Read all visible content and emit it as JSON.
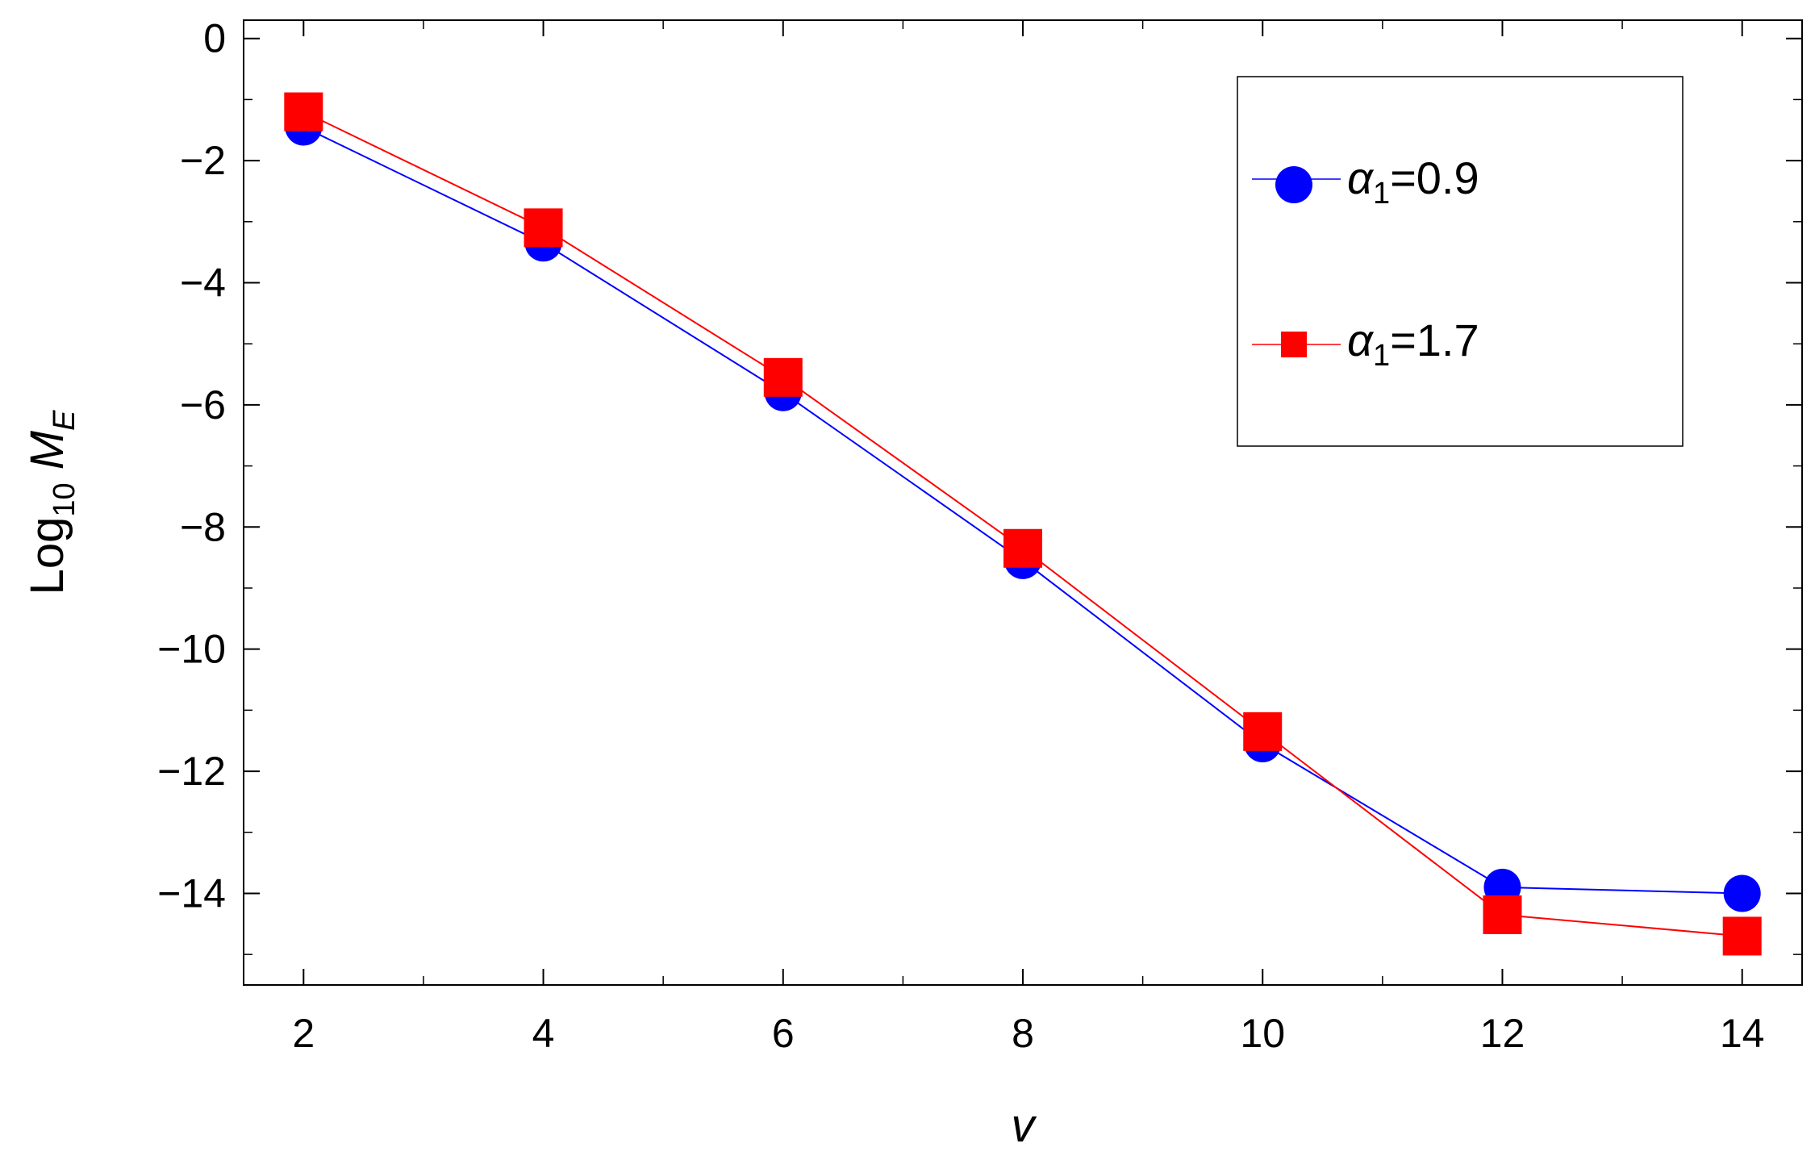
{
  "chart_data": {
    "type": "line",
    "xlabel": "v",
    "ylabel": {
      "base": "Log",
      "base_sub": "10",
      "symbol": "M",
      "symbol_sub": "E"
    },
    "xlim": [
      1.5,
      14.5
    ],
    "ylim": [
      -15.5,
      0.3
    ],
    "xticks": [
      2,
      4,
      6,
      8,
      10,
      12,
      14
    ],
    "xtick_labels": [
      "2",
      "4",
      "6",
      "8",
      "10",
      "12",
      "14"
    ],
    "yticks": [
      0,
      -2,
      -4,
      -6,
      -8,
      -10,
      -12,
      -14
    ],
    "ytick_labels": [
      "0",
      "−2",
      "−4",
      "−6",
      "−8",
      "−10",
      "−12",
      "−14"
    ],
    "x": [
      2,
      4,
      6,
      8,
      10,
      12,
      14
    ],
    "series": [
      {
        "name": "α1=0.9",
        "legend": {
          "symbol": "α",
          "sub": "1",
          "rest": "=0.9"
        },
        "color": "#0000ff",
        "marker": "circle",
        "values": [
          -1.45,
          -3.35,
          -5.8,
          -8.55,
          -11.55,
          -13.9,
          -14.0
        ]
      },
      {
        "name": "α1=1.7",
        "legend": {
          "symbol": "α",
          "sub": "1",
          "rest": "=1.7"
        },
        "color": "#ff0000",
        "marker": "square",
        "values": [
          -1.2,
          -3.1,
          -5.55,
          -8.35,
          -11.35,
          -14.35,
          -14.7
        ]
      }
    ],
    "legend_position": "top-right",
    "grid": false,
    "frame": true
  }
}
